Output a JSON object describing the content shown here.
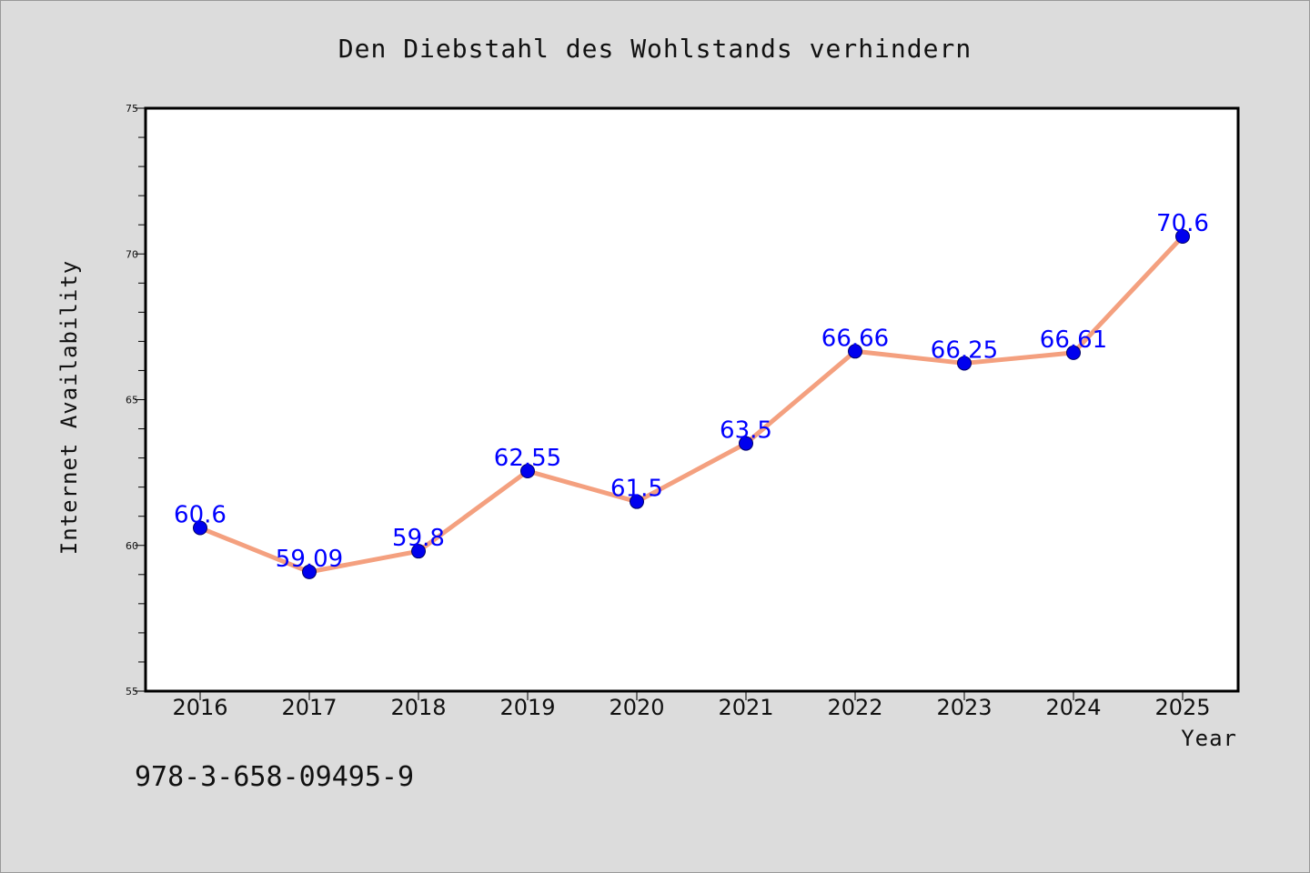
{
  "chart_data": {
    "type": "line",
    "title": "Den Diebstahl des Wohlstands verhindern",
    "xlabel": "Year",
    "ylabel": "Internet Availability",
    "categories": [
      "2016",
      "2017",
      "2018",
      "2019",
      "2020",
      "2021",
      "2022",
      "2023",
      "2024",
      "2025"
    ],
    "values": [
      60.6,
      59.09,
      59.8,
      62.55,
      61.5,
      63.5,
      66.66,
      66.25,
      66.61,
      70.6
    ],
    "data_labels": [
      "60.6",
      "59.09",
      "59.8",
      "62.55",
      "61.5",
      "63.5",
      "66.66",
      "66.25",
      "66.61",
      "70.6"
    ],
    "ylim": [
      55,
      75
    ],
    "yticks": [
      "55",
      "60",
      "65",
      "70",
      "75"
    ],
    "grid": false,
    "line_color": "#f4a07f",
    "marker_color": "#0000ee",
    "label_color": "#0000ff",
    "background_color": "#dcdcdc",
    "plot_background_color": "#ffffff"
  },
  "footer": {
    "isbn": "978-3-658-09495-9"
  }
}
